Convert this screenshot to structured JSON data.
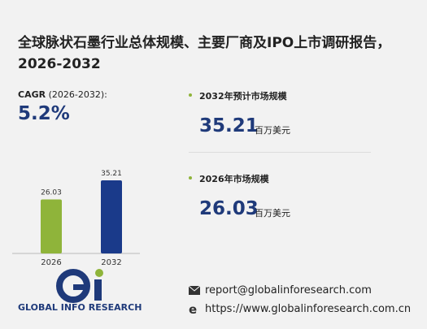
{
  "title": "全球脉状石墨行业总体规模、主要厂商及IPO上市调研报告，2026-2032",
  "cagr": {
    "label": "CAGR",
    "period": "(2026-2032):",
    "value": "5.2%"
  },
  "stats": [
    {
      "label": "2032年预计市场规模",
      "value": "35.21",
      "unit": "百万美元"
    },
    {
      "label": "2026年市场规模",
      "value": "26.03",
      "unit": "百万美元"
    }
  ],
  "chart_data": {
    "type": "bar",
    "categories": [
      "2026",
      "2032"
    ],
    "values": [
      26.03,
      35.21
    ],
    "colors": [
      "#8fb43a",
      "#1a3a8a"
    ]
  },
  "logo": {
    "text": "GLOBAL INFO RESEARCH"
  },
  "contact": {
    "email": "report@globalinforesearch.com",
    "website": "https://www.globalinforesearch.com.cn"
  }
}
